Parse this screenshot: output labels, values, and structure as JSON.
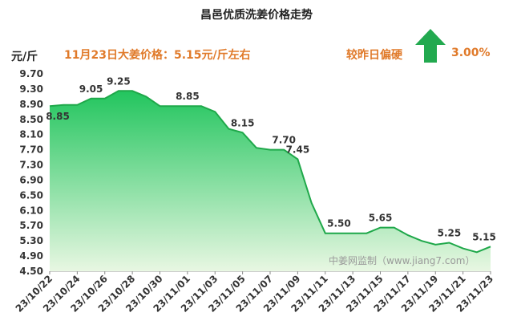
{
  "header": {
    "title": "昌邑优质洗姜价格走势",
    "unit": "元/斤",
    "headline": "11月23日大姜价格：5.15元/斤左右",
    "compare_label": "较昨日偏硬",
    "compare_value": "3.00%"
  },
  "watermark": "中姜网监制（www.jiang7.com）",
  "colors": {
    "accent": "#e07a2a",
    "fill_top": "#22c55e",
    "fill_bottom": "#e8f7e2",
    "line": "#1fa84a",
    "arrow": "#22a94f"
  },
  "chart_data": {
    "type": "area",
    "title": "昌邑优质洗姜价格走势",
    "ylabel": "元/斤",
    "ylim": [
      4.5,
      9.7
    ],
    "yticks": [
      "9.70",
      "9.30",
      "8.90",
      "8.50",
      "8.10",
      "7.70",
      "7.30",
      "6.90",
      "6.50",
      "6.10",
      "5.70",
      "5.30",
      "4.90",
      "4.50"
    ],
    "xticks": [
      "23/10/22",
      "23/10/24",
      "23/10/26",
      "23/10/28",
      "23/10/30",
      "23/11/01",
      "23/11/03",
      "23/11/05",
      "23/11/07",
      "23/11/09",
      "23/11/11",
      "23/11/13",
      "23/11/15",
      "23/11/17",
      "23/11/19",
      "23/11/21",
      "23/11/23"
    ],
    "x": [
      "23/10/22",
      "23/10/23",
      "23/10/24",
      "23/10/25",
      "23/10/26",
      "23/10/27",
      "23/10/28",
      "23/10/29",
      "23/10/30",
      "23/10/31",
      "23/11/01",
      "23/11/02",
      "23/11/03",
      "23/11/04",
      "23/11/05",
      "23/11/06",
      "23/11/07",
      "23/11/08",
      "23/11/09",
      "23/11/10",
      "23/11/11",
      "23/11/12",
      "23/11/13",
      "23/11/14",
      "23/11/15",
      "23/11/16",
      "23/11/17",
      "23/11/18",
      "23/11/19",
      "23/11/20",
      "23/11/21",
      "23/11/22",
      "23/11/23"
    ],
    "values": [
      8.85,
      8.88,
      8.88,
      9.05,
      9.05,
      9.25,
      9.25,
      9.1,
      8.85,
      8.85,
      8.85,
      8.85,
      8.7,
      8.25,
      8.15,
      7.75,
      7.7,
      7.7,
      7.45,
      6.3,
      5.5,
      5.5,
      5.5,
      5.5,
      5.65,
      5.65,
      5.45,
      5.3,
      5.2,
      5.25,
      5.1,
      5.0,
      5.15
    ],
    "data_labels": [
      {
        "index": 0,
        "text": "8.85",
        "pos": "below"
      },
      {
        "index": 3,
        "text": "9.05",
        "pos": "above"
      },
      {
        "index": 5,
        "text": "9.25",
        "pos": "above"
      },
      {
        "index": 10,
        "text": "8.85",
        "pos": "above"
      },
      {
        "index": 14,
        "text": "8.15",
        "pos": "above"
      },
      {
        "index": 17,
        "text": "7.70",
        "pos": "above"
      },
      {
        "index": 18,
        "text": "7.45",
        "pos": "above"
      },
      {
        "index": 21,
        "text": "5.50",
        "pos": "above"
      },
      {
        "index": 24,
        "text": "5.65",
        "pos": "above"
      },
      {
        "index": 29,
        "text": "5.25",
        "pos": "above"
      },
      {
        "index": 32,
        "text": "5.15",
        "pos": "above"
      }
    ],
    "grid": false
  }
}
